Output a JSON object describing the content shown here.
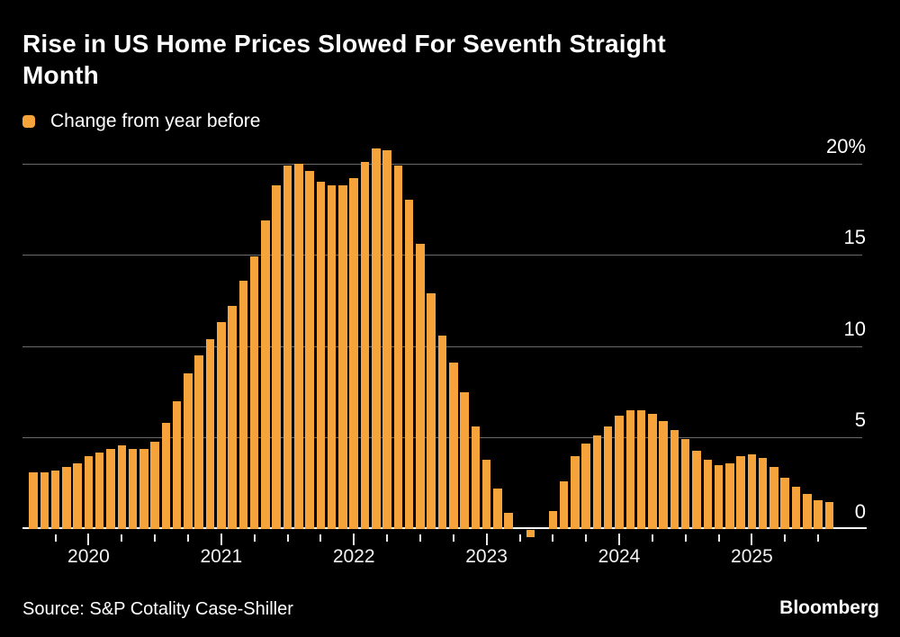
{
  "header": {
    "title": "Rise in US Home Prices Slowed For Seventh Straight Month",
    "title_lines": [
      "Rise in US Home Prices Slowed For Seventh Straight",
      "Month"
    ]
  },
  "legend": {
    "label": "Change from year before",
    "swatch_color": "#F7A33C"
  },
  "footer": {
    "source": "Source: S&P Cotality Case-Shiller",
    "brand": "Bloomberg"
  },
  "colors": {
    "background": "#000000",
    "bar": "#F7A33C",
    "gridline": "#6B6B6B",
    "axis": "#FFFFFF",
    "tick": "#E8E8E8",
    "text": "#FFFFFF"
  },
  "chart_data": {
    "type": "bar",
    "title": "Rise in US Home Prices Slowed For Seventh Straight Month",
    "legend": "Change from year before",
    "ylabel": "Change from year before (%)",
    "xlabel": "",
    "ylim": [
      -1,
      21
    ],
    "grid": true,
    "y_ticks": [
      {
        "value": 0,
        "label": "0",
        "suffix": ""
      },
      {
        "value": 5,
        "label": "5",
        "suffix": ""
      },
      {
        "value": 10,
        "label": "10",
        "suffix": ""
      },
      {
        "value": 15,
        "label": "15",
        "suffix": ""
      },
      {
        "value": 20,
        "label": "20",
        "suffix": "%"
      }
    ],
    "x_year_labels": [
      "2020",
      "2021",
      "2022",
      "2023",
      "2024",
      "2025"
    ],
    "start": "2019-08",
    "categories": [
      "Aug 2019",
      "Sep 2019",
      "Oct 2019",
      "Nov 2019",
      "Dec 2019",
      "Jan 2020",
      "Feb 2020",
      "Mar 2020",
      "Apr 2020",
      "May 2020",
      "Jun 2020",
      "Jul 2020",
      "Aug 2020",
      "Sep 2020",
      "Oct 2020",
      "Nov 2020",
      "Dec 2020",
      "Jan 2021",
      "Feb 2021",
      "Mar 2021",
      "Apr 2021",
      "May 2021",
      "Jun 2021",
      "Jul 2021",
      "Aug 2021",
      "Sep 2021",
      "Oct 2021",
      "Nov 2021",
      "Dec 2021",
      "Jan 2022",
      "Feb 2022",
      "Mar 2022",
      "Apr 2022",
      "May 2022",
      "Jun 2022",
      "Jul 2022",
      "Aug 2022",
      "Sep 2022",
      "Oct 2022",
      "Nov 2022",
      "Dec 2022",
      "Jan 2023",
      "Feb 2023",
      "Mar 2023",
      "Apr 2023",
      "May 2023",
      "Jun 2023",
      "Jul 2023",
      "Aug 2023",
      "Sep 2023",
      "Oct 2023",
      "Nov 2023",
      "Dec 2023",
      "Jan 2024",
      "Feb 2024",
      "Mar 2024",
      "Apr 2024",
      "May 2024",
      "Jun 2024",
      "Jul 2024",
      "Aug 2024",
      "Sep 2024",
      "Oct 2024",
      "Nov 2024",
      "Dec 2024",
      "Jan 2025",
      "Feb 2025",
      "Mar 2025",
      "Apr 2025",
      "May 2025",
      "Jun 2025",
      "Jul 2025",
      "Aug 2025"
    ],
    "values": [
      3.1,
      3.1,
      3.2,
      3.4,
      3.6,
      4.0,
      4.2,
      4.4,
      4.6,
      4.4,
      4.4,
      4.8,
      5.8,
      7.0,
      8.5,
      9.5,
      10.4,
      11.3,
      12.2,
      13.6,
      14.9,
      16.9,
      18.8,
      19.9,
      20.0,
      19.6,
      19.0,
      18.8,
      18.8,
      19.2,
      20.1,
      20.8,
      20.7,
      19.9,
      18.0,
      15.6,
      12.9,
      10.6,
      9.1,
      7.5,
      5.6,
      3.8,
      2.2,
      0.9,
      0.0,
      -0.4,
      0.0,
      1.0,
      2.6,
      4.0,
      4.7,
      5.1,
      5.6,
      6.2,
      6.5,
      6.5,
      6.3,
      5.9,
      5.4,
      4.9,
      4.3,
      3.8,
      3.5,
      3.6,
      4.0,
      4.1,
      3.9,
      3.4,
      2.8,
      2.3,
      1.9,
      1.6,
      1.5
    ]
  }
}
